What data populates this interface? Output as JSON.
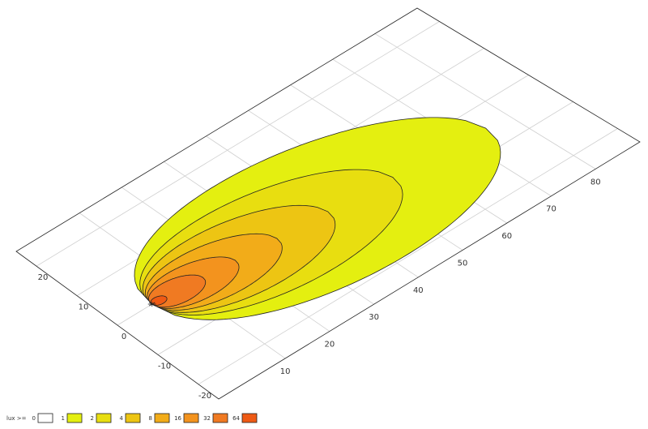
{
  "chart_data": {
    "type": "contour",
    "legend_title": "lux >=",
    "levels": [
      0,
      1,
      2,
      4,
      8,
      16,
      32,
      64
    ],
    "colors": [
      "#ffffff",
      "#e4ef10",
      "#e8de10",
      "#edc513",
      "#f2ac19",
      "#f3931e",
      "#f07a22",
      "#ef5a14"
    ],
    "xlim": [
      -5,
      90
    ],
    "ylim": [
      -25,
      25
    ],
    "xticks": [
      10,
      20,
      30,
      40,
      50,
      60,
      70,
      80
    ],
    "yticks": [
      -20,
      -10,
      0,
      10,
      20
    ],
    "grid": true,
    "source": {
      "x": 3,
      "y": 0
    },
    "axis_slope": -0.07,
    "reach": [
      72,
      52,
      38,
      27,
      18,
      11,
      3
    ],
    "half_width": [
      17,
      12,
      9,
      6.5,
      4.5,
      3,
      1
    ]
  }
}
